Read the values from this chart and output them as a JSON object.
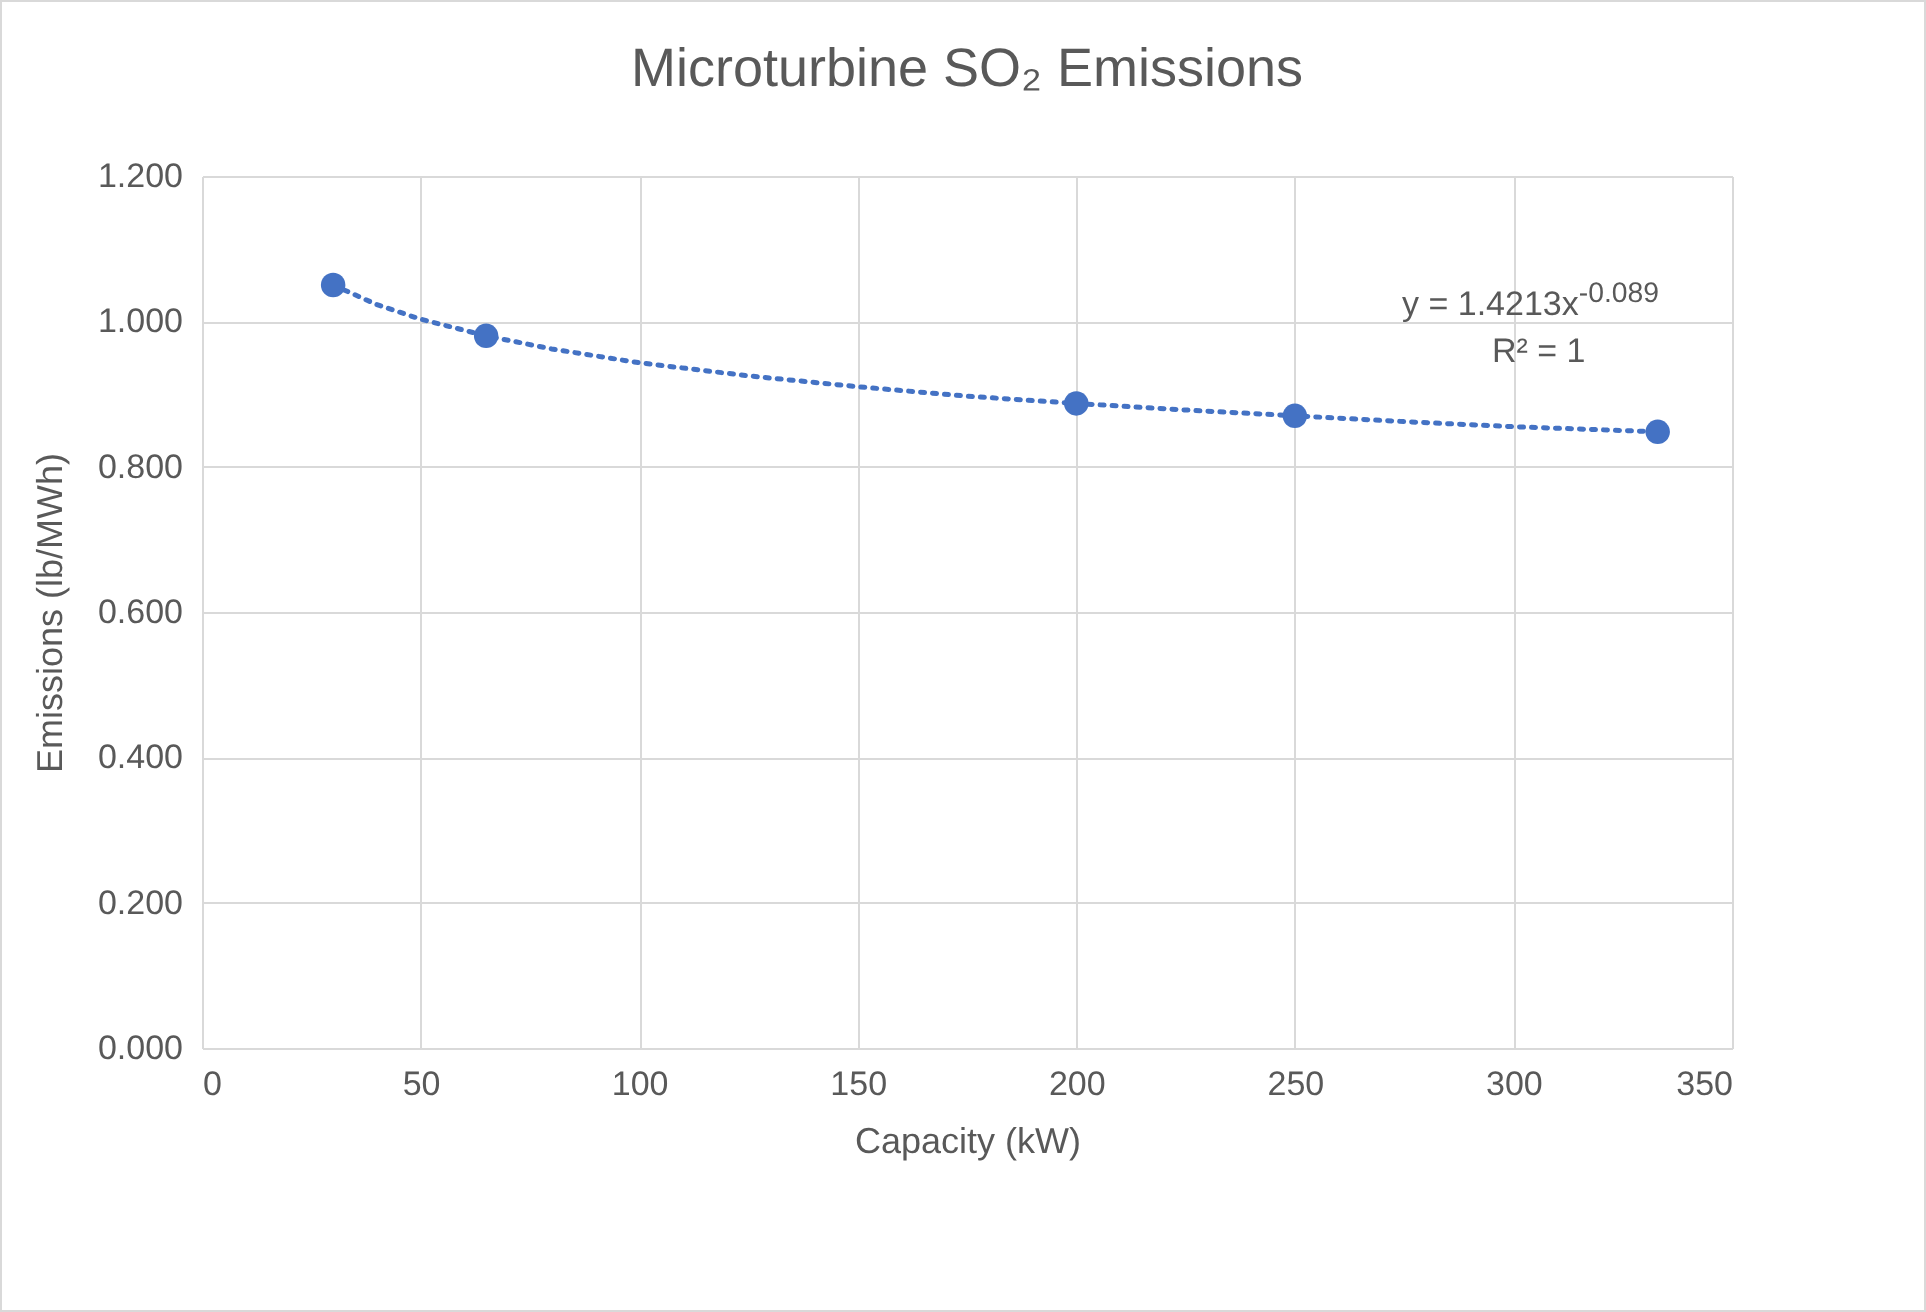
{
  "chart_data": {
    "type": "scatter",
    "title": "Microturbine SO₂ Emissions",
    "xlabel": "Capacity (kW)",
    "ylabel": "Emissions (lb/MWh)",
    "annotations": [
      "y = 1.4213x$^{-0.089}$",
      "R² = 1"
    ],
    "series": [
      {
        "type": "scatter",
        "color": "#4472c4",
        "marker": "circle",
        "x": [
          30,
          65,
          200,
          250,
          333
        ],
        "values": [
          1.05,
          0.98,
          0.887,
          0.87,
          0.848
        ]
      },
      {
        "type": "line",
        "color": "#4472c4",
        "marker": "none",
        "line_style": "dotted",
        "x": [
          30,
          40,
          50,
          65,
          80,
          100,
          125,
          150,
          175,
          200,
          225,
          250,
          275,
          300,
          333
        ],
        "values": [
          1.05,
          1.023,
          1.003,
          0.98,
          0.962,
          0.943,
          0.925,
          0.91,
          0.897,
          0.887,
          0.878,
          0.87,
          0.862,
          0.855,
          0.848
        ]
      }
    ],
    "xlim": [
      0,
      350
    ],
    "xticks": [
      0,
      50,
      100,
      150,
      200,
      250,
      300,
      350
    ],
    "ylim": [
      0,
      1.2
    ],
    "yticks": [
      {
        "value": 0,
        "label": "0.000"
      },
      {
        "value": 0.2,
        "label": "0.200"
      },
      {
        "value": 0.4,
        "label": "0.400"
      },
      {
        "value": 0.6,
        "label": "0.600"
      },
      {
        "value": 0.8,
        "label": "0.800"
      },
      {
        "value": 1.0,
        "label": "1.000"
      },
      {
        "value": 1.2,
        "label": "1.200"
      }
    ],
    "grid": true
  }
}
